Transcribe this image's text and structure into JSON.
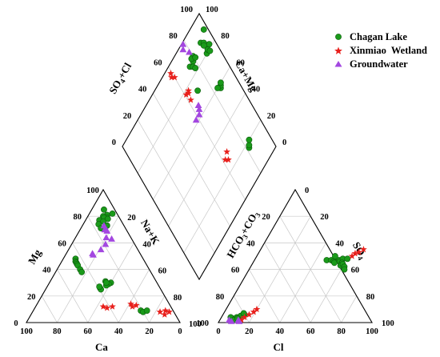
{
  "chart_data": {
    "type": "scatter",
    "subtype": "piper-trilinear",
    "legend": {
      "placement": "top-right",
      "entries": [
        {
          "name": "Chagan Lake",
          "color": "#1a9a1a",
          "marker": "circle"
        },
        {
          "name": "Xinmiao  Wetland",
          "color": "#e8201c",
          "marker": "star"
        },
        {
          "name": "Groundwater",
          "color": "#a347e0",
          "marker": "triangle"
        }
      ]
    },
    "axes": {
      "cation": {
        "left_label": "Mg",
        "bottom_label": "Ca",
        "right_label": "Na+K"
      },
      "anion": {
        "left_label": "HCO3+CO3",
        "bottom_label": "Cl",
        "right_label": "SO4"
      },
      "diamond": {
        "left_label": "SO4+Cl",
        "right_label": "Ca+Mg"
      }
    },
    "ticks": {
      "cation_bottom": [
        "100",
        "80",
        "60",
        "40",
        "20",
        "0"
      ],
      "cation_left": [
        "0",
        "20",
        "40",
        "60",
        "80",
        "100"
      ],
      "cation_right": [
        "100",
        "80",
        "60",
        "40",
        "20"
      ],
      "anion_bottom": [
        "0",
        "20",
        "40",
        "60",
        "80",
        "100"
      ],
      "anion_left": [
        "100",
        "80",
        "60",
        "40",
        "20"
      ],
      "anion_right": [
        "0",
        "20",
        "40",
        "60",
        "80",
        "100"
      ],
      "diamond_upper_left": [
        "0",
        "20",
        "40",
        "60",
        "80",
        "100"
      ],
      "diamond_upper_right": [
        "100",
        "80",
        "60",
        "40",
        "20",
        "0"
      ]
    },
    "grid": true,
    "series": [
      {
        "name": "Chagan Lake",
        "cation": [
          [
            8,
            85
          ],
          [
            12,
            81
          ],
          [
            15,
            82
          ],
          [
            10,
            80
          ],
          [
            13,
            79
          ],
          [
            11,
            79
          ],
          [
            14,
            78
          ],
          [
            9,
            77
          ],
          [
            12,
            76
          ],
          [
            10,
            74
          ],
          [
            16,
            73
          ],
          [
            13,
            71
          ],
          [
            8,
            48
          ],
          [
            9,
            46
          ],
          [
            10,
            45
          ],
          [
            11,
            44
          ],
          [
            12,
            43
          ],
          [
            15,
            40
          ],
          [
            17,
            38
          ],
          [
            40,
            30
          ],
          [
            39,
            29
          ],
          [
            38,
            28
          ],
          [
            36,
            31
          ],
          [
            37,
            30
          ],
          [
            35,
            26
          ],
          [
            36,
            25
          ],
          [
            34,
            27
          ],
          [
            70,
            9
          ],
          [
            72,
            8
          ],
          [
            74,
            9
          ]
        ],
        "anion": [
          [
            8,
            3
          ],
          [
            10,
            4
          ],
          [
            12,
            5
          ],
          [
            6,
            4
          ],
          [
            9,
            2
          ],
          [
            14,
            6
          ],
          [
            11,
            3
          ],
          [
            13,
            7
          ],
          [
            47,
            47
          ],
          [
            50,
            47
          ],
          [
            52,
            46
          ],
          [
            53,
            45
          ],
          [
            55,
            47
          ],
          [
            56,
            46
          ],
          [
            51,
            50
          ],
          [
            57,
            48
          ],
          [
            60,
            48
          ],
          [
            58,
            45
          ],
          [
            58,
            43
          ],
          [
            59,
            44
          ],
          [
            61,
            42
          ],
          [
            62,
            40
          ]
        ],
        "diamond": [
          [
            86,
            58
          ],
          [
            87,
            59
          ],
          [
            84,
            60
          ],
          [
            88,
            60
          ],
          [
            82,
            17
          ],
          [
            83,
            18
          ],
          [
            85,
            20
          ],
          [
            90,
            80
          ],
          [
            92,
            81
          ],
          [
            93,
            79
          ],
          [
            95,
            82
          ],
          [
            70,
            72
          ],
          [
            78,
            86
          ],
          [
            74,
            86
          ],
          [
            76,
            84
          ],
          [
            80,
            88
          ],
          [
            77,
            82
          ],
          [
            78,
            88
          ],
          [
            81,
            86
          ],
          [
            90,
            88
          ],
          [
            92,
            86
          ],
          [
            91,
            85
          ],
          [
            97,
            91
          ]
        ]
      },
      {
        "name": "Xinmiao  Wetland",
        "cation": [
          [
            61,
            14
          ],
          [
            63,
            12
          ],
          [
            65,
            13
          ],
          [
            44,
            12
          ],
          [
            47,
            11
          ],
          [
            50,
            12
          ],
          [
            86,
            9
          ],
          [
            89,
            8
          ],
          [
            87,
            6
          ],
          [
            83,
            8
          ]
        ],
        "anion": [
          [
            15,
            4
          ],
          [
            17,
            6
          ],
          [
            19,
            8
          ],
          [
            14,
            2
          ],
          [
            20,
            10
          ],
          [
            62,
            50
          ],
          [
            63,
            52
          ],
          [
            65,
            53
          ],
          [
            67,
            55
          ]
        ],
        "diamond": [
          [
            62,
            28
          ],
          [
            64,
            26
          ],
          [
            66,
            30
          ],
          [
            58,
            94
          ],
          [
            59,
            96
          ],
          [
            60,
            92
          ],
          [
            61,
            78
          ],
          [
            62,
            73
          ],
          [
            63,
            77
          ],
          [
            64,
            78
          ]
        ]
      },
      {
        "name": "Groundwater",
        "cation": [
          [
            14,
            73
          ],
          [
            16,
            70
          ],
          [
            18,
            69
          ],
          [
            20,
            64
          ],
          [
            22,
            59
          ],
          [
            24,
            63
          ],
          [
            21,
            55
          ],
          [
            18,
            51
          ],
          [
            17,
            52
          ]
        ],
        "anion": [
          [
            6,
            2
          ],
          [
            8,
            1
          ],
          [
            12,
            2
          ],
          [
            13,
            1
          ]
        ],
        "diamond": [
          [
            58,
            62
          ],
          [
            62,
            62
          ],
          [
            64,
            64
          ],
          [
            65,
            66
          ],
          [
            76,
            97
          ],
          [
            78,
            99
          ],
          [
            79,
            92
          ]
        ]
      }
    ]
  }
}
